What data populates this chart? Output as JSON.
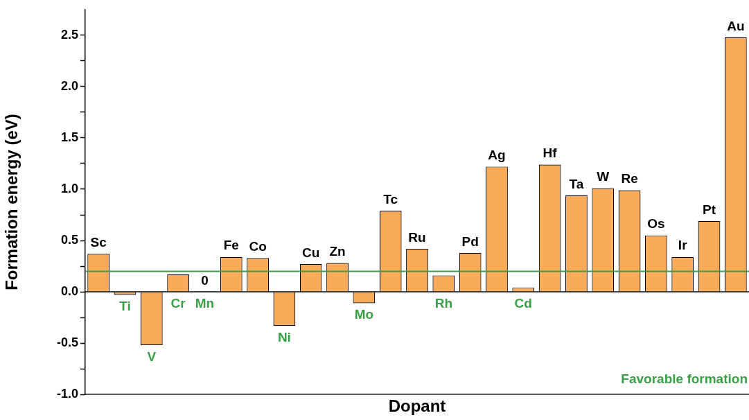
{
  "chart_data": {
    "type": "bar",
    "xlabel": "Dopant",
    "ylabel": "Formation energy (eV)",
    "categories": [
      "Sc",
      "Ti",
      "V",
      "Cr",
      "Mn",
      "Fe",
      "Co",
      "Ni",
      "Cu",
      "Zn",
      "Mo",
      "Tc",
      "Ru",
      "Rh",
      "Pd",
      "Ag",
      "Cd",
      "Hf",
      "Ta",
      "W",
      "Re",
      "Os",
      "Ir",
      "Pt",
      "Au"
    ],
    "values": [
      0.37,
      -0.03,
      -0.52,
      0.17,
      0,
      0.34,
      0.33,
      -0.33,
      0.27,
      0.28,
      -0.11,
      0.79,
      0.42,
      0.16,
      0.38,
      1.22,
      0.04,
      1.24,
      0.94,
      1.01,
      0.99,
      0.55,
      0.34,
      0.69,
      2.48
    ],
    "value_labels": [
      null,
      null,
      null,
      null,
      "0",
      null,
      null,
      null,
      null,
      null,
      null,
      null,
      null,
      null,
      null,
      null,
      null,
      null,
      null,
      null,
      null,
      null,
      null,
      null,
      null
    ],
    "color": "#f9ab5a",
    "ylim": [
      -1,
      2.75
    ],
    "yticks": [
      {
        "value": -1,
        "label": "-1.0"
      },
      {
        "value": -0.75,
        "label": null
      },
      -0.5,
      {
        "value": -0.25,
        "label": null
      },
      {
        "value": 0,
        "label": "0.0"
      },
      {
        "value": 0.25,
        "label": null
      },
      0.5,
      {
        "value": 0.75,
        "label": null
      },
      {
        "value": 1,
        "label": "1.0"
      },
      {
        "value": 1.25,
        "label": null
      },
      1.5,
      {
        "value": 1.75,
        "label": null
      },
      {
        "value": 2,
        "label": "2.0"
      },
      {
        "value": 2.25,
        "label": null
      },
      2.5
    ],
    "tick_labels": "y",
    "grid": false,
    "legend": false,
    "ref_lines": [
      {
        "axis": "y",
        "value": 0.2,
        "label": "Favorable formation",
        "color": "#3aa047"
      }
    ]
  }
}
